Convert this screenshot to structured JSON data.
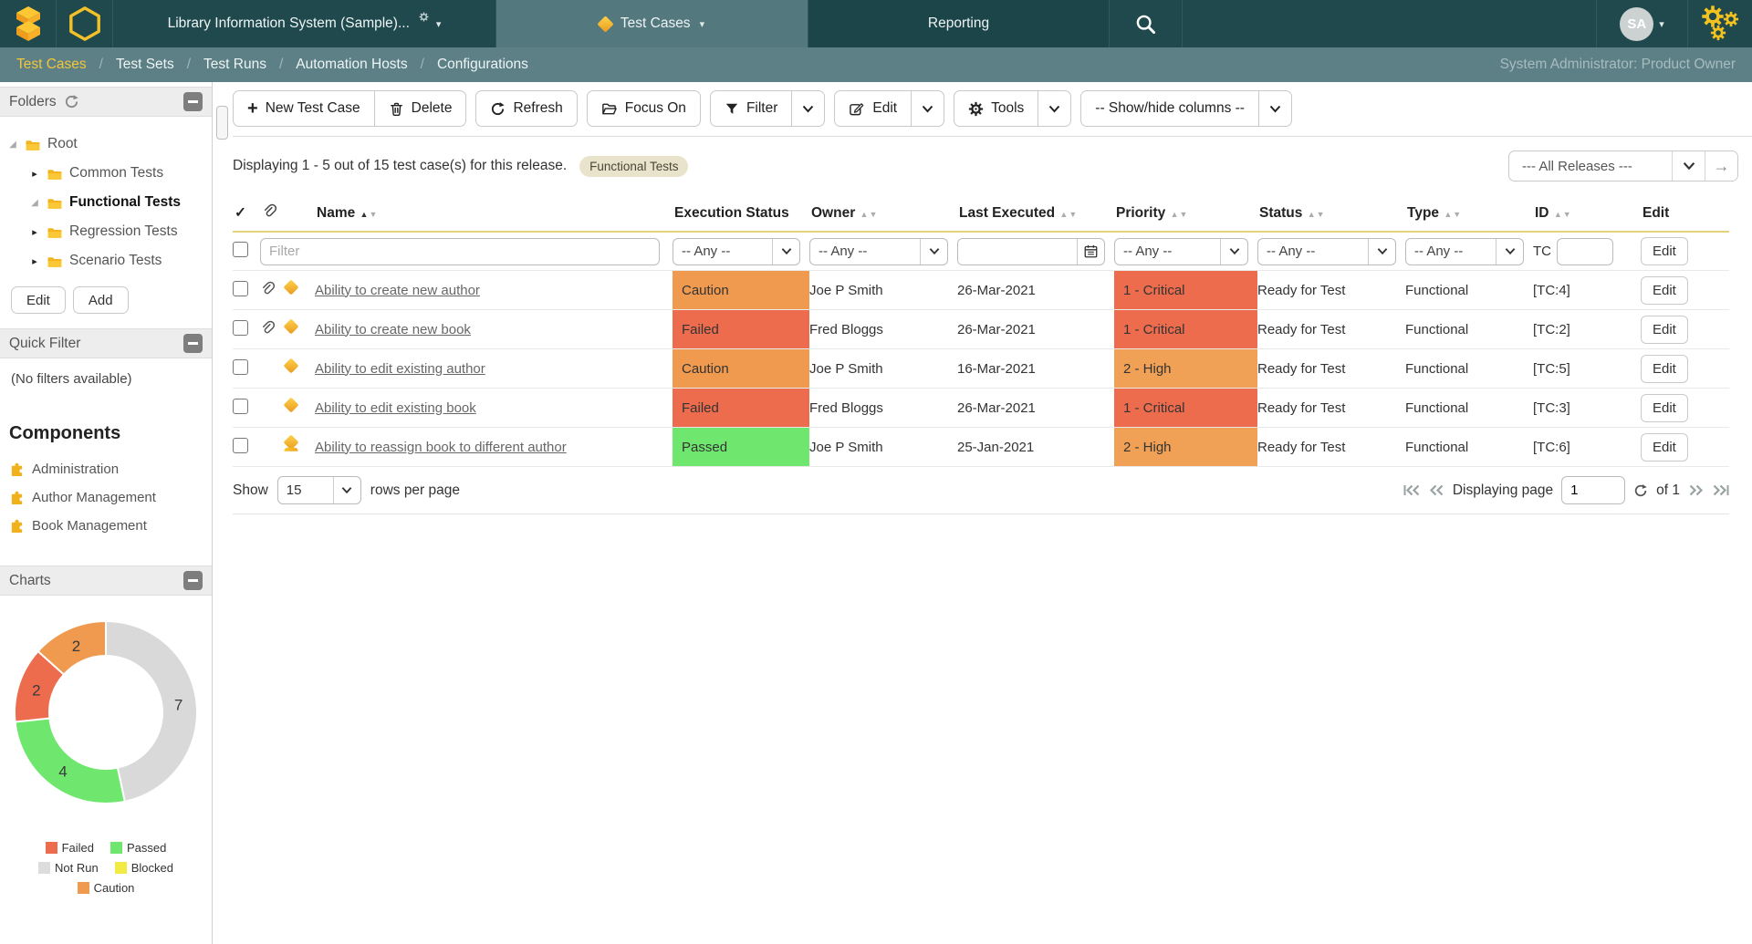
{
  "nav": {
    "product_title": "Library Information System (Sample)...",
    "tabs": [
      {
        "label": "Test Cases"
      },
      {
        "label": "Reporting"
      }
    ],
    "avatar_initials": "SA"
  },
  "breadcrumb": {
    "separator": "/",
    "items": [
      "Test Cases",
      "Test Sets",
      "Test Runs",
      "Automation Hosts",
      "Configurations"
    ],
    "active_item": "Test Cases",
    "user_role": "System Administrator: Product Owner"
  },
  "toolbar": {
    "new_test_case": "New Test Case",
    "delete": "Delete",
    "refresh": "Refresh",
    "focus_on": "Focus On",
    "filter": "Filter",
    "edit": "Edit",
    "tools": "Tools",
    "show_hide_columns": "-- Show/hide columns --"
  },
  "summary": {
    "text": "Displaying 1 - 5 out of 15 test case(s) for this release.",
    "badge": "Functional Tests",
    "release_filter": "--- All Releases ---"
  },
  "table": {
    "headers": {
      "check": "✓",
      "name": "Name",
      "execution_status": "Execution Status",
      "owner": "Owner",
      "last_executed": "Last Executed",
      "priority": "Priority",
      "status": "Status",
      "type": "Type",
      "id": "ID",
      "edit": "Edit"
    },
    "filter_row": {
      "name_placeholder": "Filter",
      "any_option": "-- Any --",
      "id_prefix": "TC",
      "edit_label": "Edit"
    },
    "row_edit_label": "Edit",
    "rows": [
      {
        "name": "Ability to create new author",
        "attachment": true,
        "steps_icon": false,
        "execution_status": "Caution",
        "owner": "Joe P Smith",
        "last_executed": "26-Mar-2021",
        "priority": "1 - Critical",
        "status": "Ready for Test",
        "type": "Functional",
        "id": "[TC:4]"
      },
      {
        "name": "Ability to create new book",
        "attachment": true,
        "steps_icon": false,
        "execution_status": "Failed",
        "owner": "Fred Bloggs",
        "last_executed": "26-Mar-2021",
        "priority": "1 - Critical",
        "status": "Ready for Test",
        "type": "Functional",
        "id": "[TC:2]"
      },
      {
        "name": "Ability to edit existing author",
        "attachment": false,
        "steps_icon": false,
        "execution_status": "Caution",
        "owner": "Joe P Smith",
        "last_executed": "16-Mar-2021",
        "priority": "2 - High",
        "status": "Ready for Test",
        "type": "Functional",
        "id": "[TC:5]"
      },
      {
        "name": "Ability to edit existing book",
        "attachment": false,
        "steps_icon": false,
        "execution_status": "Failed",
        "owner": "Fred Bloggs",
        "last_executed": "26-Mar-2021",
        "priority": "1 - Critical",
        "status": "Ready for Test",
        "type": "Functional",
        "id": "[TC:3]"
      },
      {
        "name": "Ability to reassign book to different author",
        "attachment": false,
        "steps_icon": true,
        "execution_status": "Passed",
        "owner": "Joe P Smith",
        "last_executed": "25-Jan-2021",
        "priority": "2 - High",
        "status": "Ready for Test",
        "type": "Functional",
        "id": "[TC:6]"
      }
    ],
    "pagination": {
      "show_label": "Show",
      "rows_value": "15",
      "rows_suffix": "rows per page",
      "page_label": "Displaying page",
      "page_value": "1",
      "of_label": "of 1"
    }
  },
  "status_colors": {
    "Caution": "#f09a4f",
    "Failed": "#ed6c4e",
    "Passed": "#6fe76f",
    "1 - Critical": "#ed6c4e",
    "2 - High": "#f0a155"
  },
  "sidebar": {
    "folders": {
      "title": "Folders",
      "edit_button": "Edit",
      "add_button": "Add",
      "items": [
        {
          "label": "Root",
          "level": 0,
          "state": "expanded",
          "bold": false
        },
        {
          "label": "Common Tests",
          "level": 1,
          "state": "collapsed",
          "bold": false
        },
        {
          "label": "Functional Tests",
          "level": 1,
          "state": "expanded",
          "bold": true
        },
        {
          "label": "Regression Tests",
          "level": 1,
          "state": "collapsed",
          "bold": false
        },
        {
          "label": "Scenario Tests",
          "level": 1,
          "state": "collapsed",
          "bold": false
        }
      ]
    },
    "quick_filter": {
      "title": "Quick Filter",
      "empty_text": "(No filters available)"
    },
    "components": {
      "title": "Components",
      "items": [
        "Administration",
        "Author Management",
        "Book Management"
      ]
    },
    "charts": {
      "title": "Charts"
    }
  },
  "chart_data": {
    "type": "pie",
    "subtype": "donut",
    "direction": "clockwise",
    "start_angle_deg": 0,
    "total": 15,
    "segments": [
      {
        "label": "Not Run",
        "value": 7,
        "color": "#d9d9d9"
      },
      {
        "label": "Passed",
        "value": 4,
        "color": "#6fe76f"
      },
      {
        "label": "Failed",
        "value": 2,
        "color": "#ed6c4e"
      },
      {
        "label": "Caution",
        "value": 2,
        "color": "#f09a4f"
      }
    ],
    "legend_position": "bottom",
    "legend": [
      {
        "label": "Failed",
        "color": "#ed6c4e"
      },
      {
        "label": "Passed",
        "color": "#6fe76f"
      },
      {
        "label": "Not Run",
        "color": "#dcdcdc"
      },
      {
        "label": "Blocked",
        "color": "#f2ea45"
      },
      {
        "label": "Caution",
        "color": "#f09a4f"
      }
    ]
  }
}
